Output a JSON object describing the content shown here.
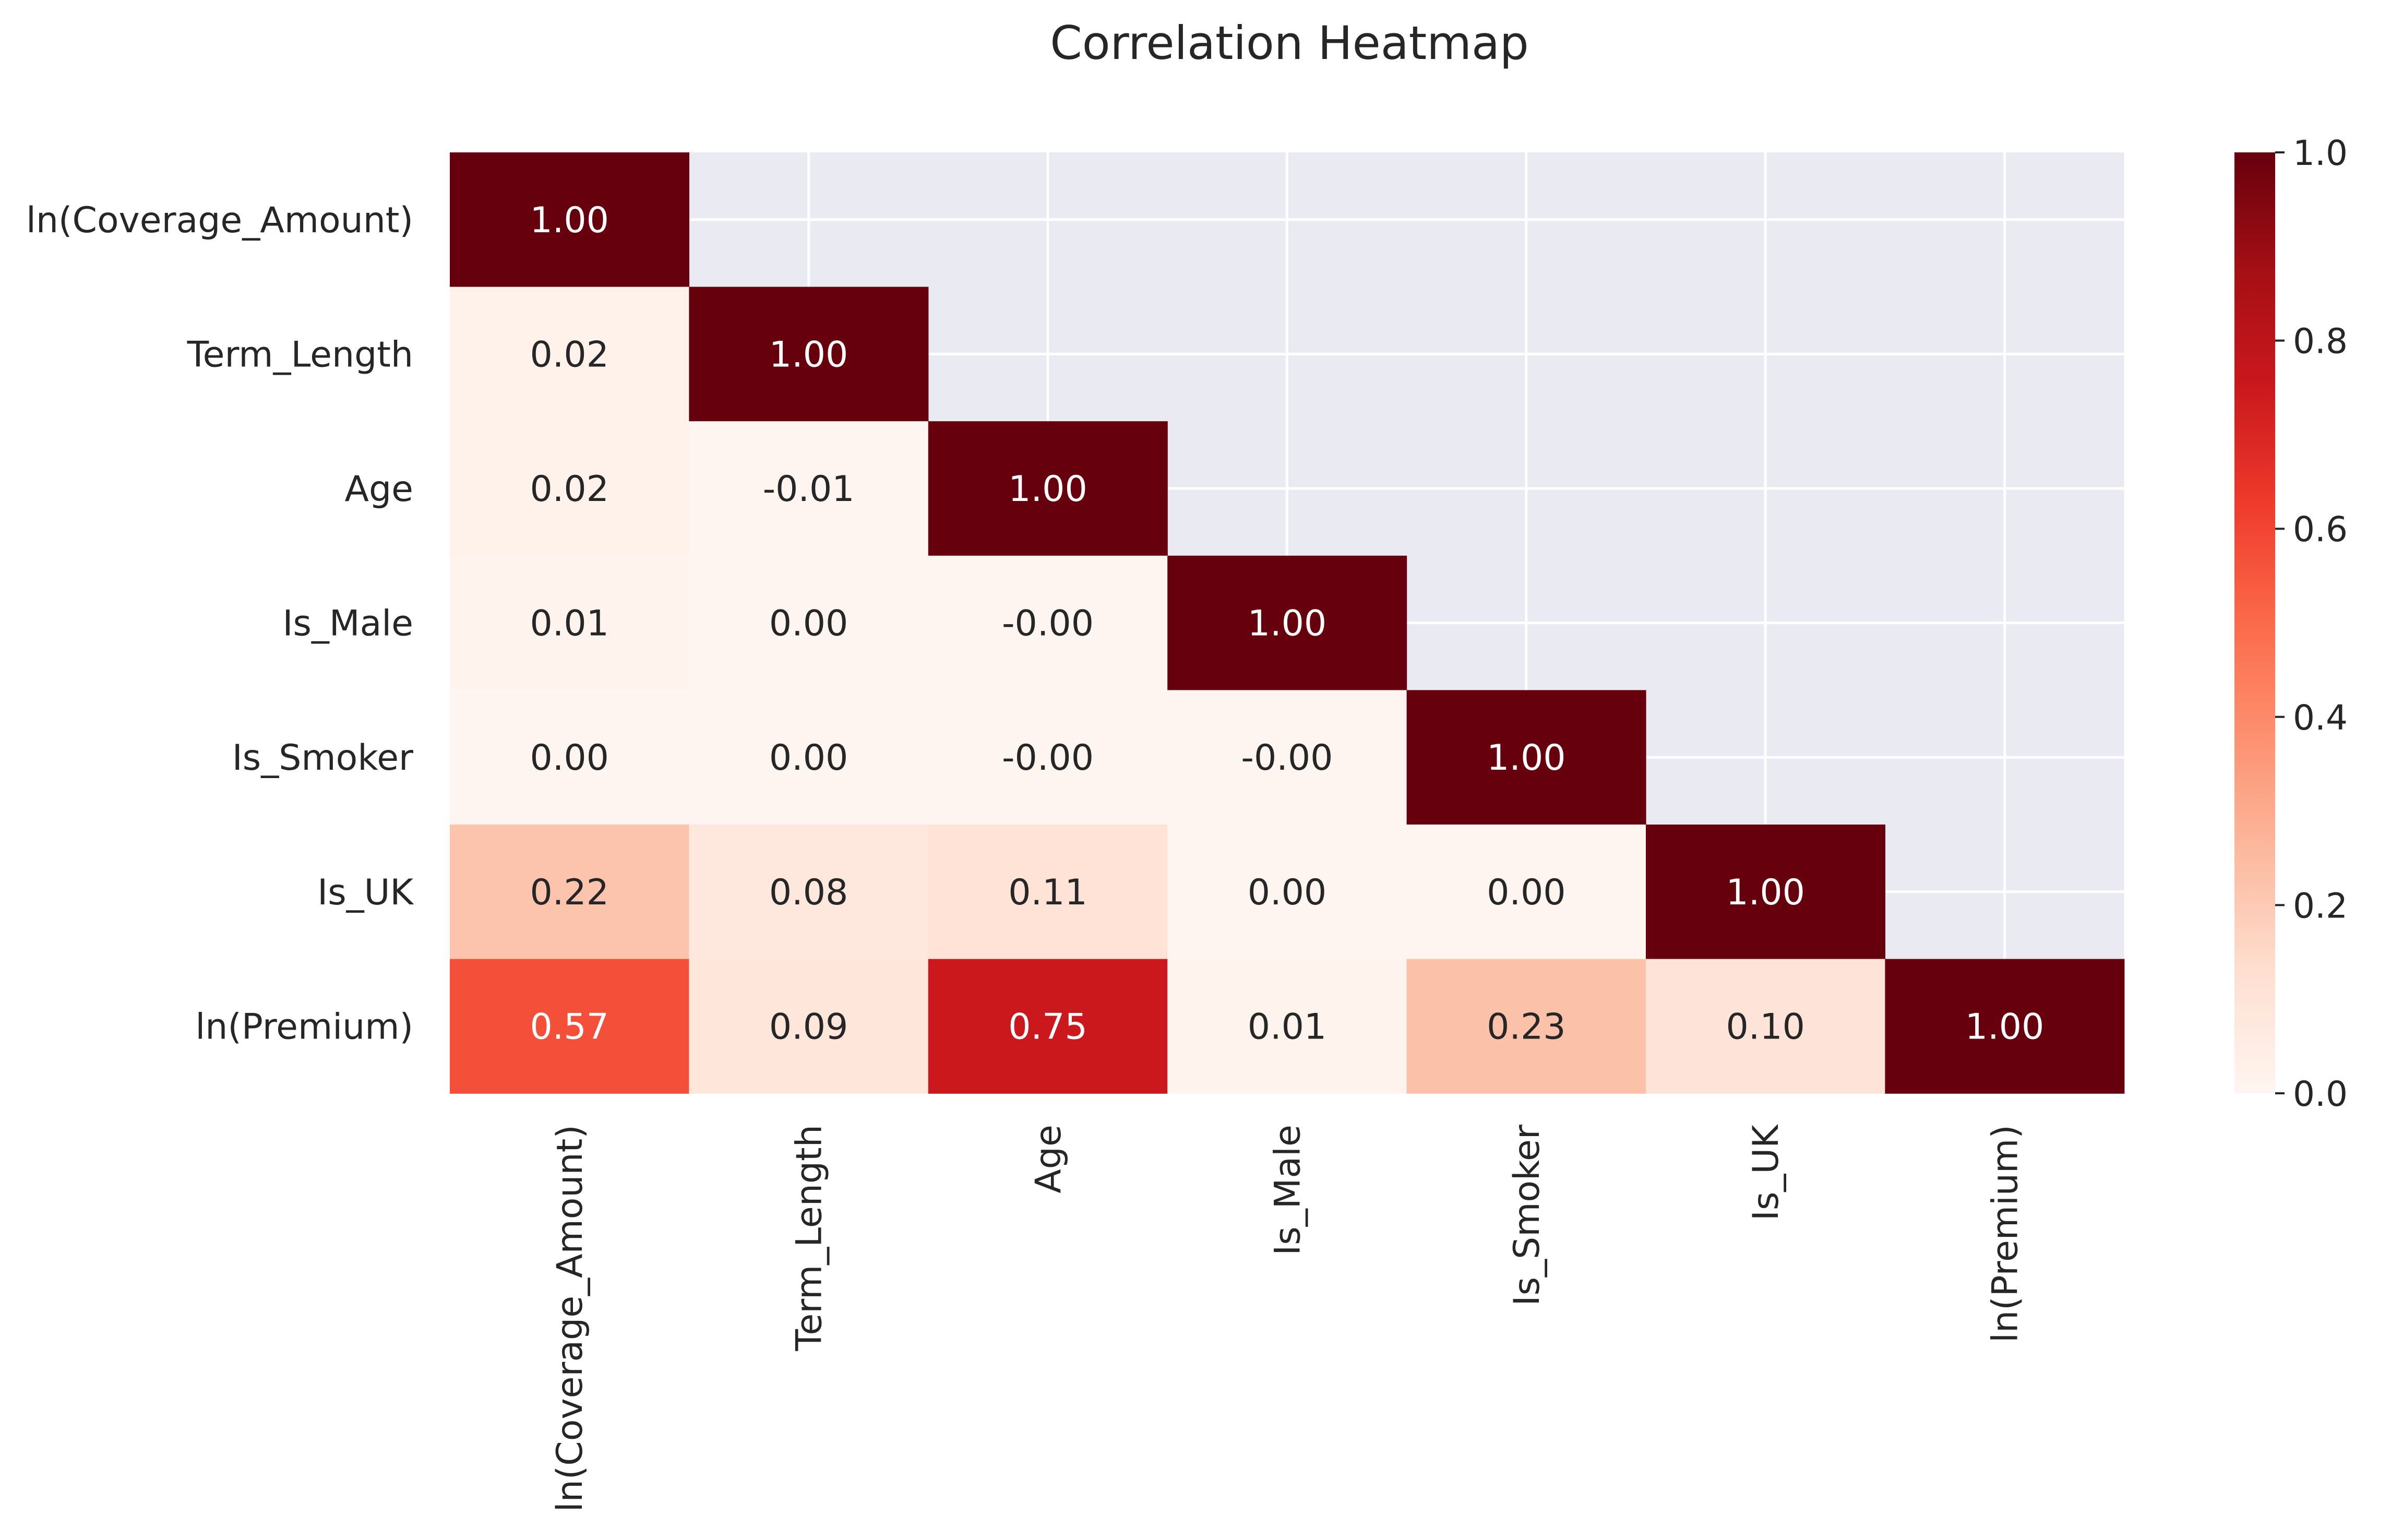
{
  "chart_data": {
    "type": "heatmap",
    "title": "Correlation Heatmap",
    "labels": [
      "ln(Coverage_Amount)",
      "Term_Length",
      "Age",
      "Is_Male",
      "Is_Smoker",
      "Is_UK",
      "ln(Premium)"
    ],
    "values": [
      [
        1.0,
        null,
        null,
        null,
        null,
        null,
        null
      ],
      [
        0.02,
        1.0,
        null,
        null,
        null,
        null,
        null
      ],
      [
        0.02,
        -0.01,
        1.0,
        null,
        null,
        null,
        null
      ],
      [
        0.01,
        0.0,
        -0.0,
        1.0,
        null,
        null,
        null
      ],
      [
        0.0,
        0.0,
        -0.0,
        -0.0,
        1.0,
        null,
        null
      ],
      [
        0.22,
        0.08,
        0.11,
        0.0,
        0.0,
        1.0,
        null
      ],
      [
        0.57,
        0.09,
        0.75,
        0.01,
        0.23,
        0.1,
        1.0
      ]
    ],
    "display_values": [
      [
        "1.00",
        "",
        "",
        "",
        "",
        "",
        ""
      ],
      [
        "0.02",
        "1.00",
        "",
        "",
        "",
        "",
        ""
      ],
      [
        "0.02",
        "-0.01",
        "1.00",
        "",
        "",
        "",
        ""
      ],
      [
        "0.01",
        "0.00",
        "-0.00",
        "1.00",
        "",
        "",
        ""
      ],
      [
        "0.00",
        "0.00",
        "-0.00",
        "-0.00",
        "1.00",
        "",
        ""
      ],
      [
        "0.22",
        "0.08",
        "0.11",
        "0.00",
        "0.00",
        "1.00",
        ""
      ],
      [
        "0.57",
        "0.09",
        "0.75",
        "0.01",
        "0.23",
        "0.10",
        "1.00"
      ]
    ],
    "mask": "upper triangle",
    "colormap": "Reds",
    "colorbar": {
      "range": [
        0,
        1
      ],
      "ticks": [
        "0.0",
        "0.2",
        "0.4",
        "0.6",
        "0.8",
        "1.0"
      ]
    },
    "grid": true,
    "background_color": "#eaeaf2",
    "grid_color": "#ffffff"
  }
}
